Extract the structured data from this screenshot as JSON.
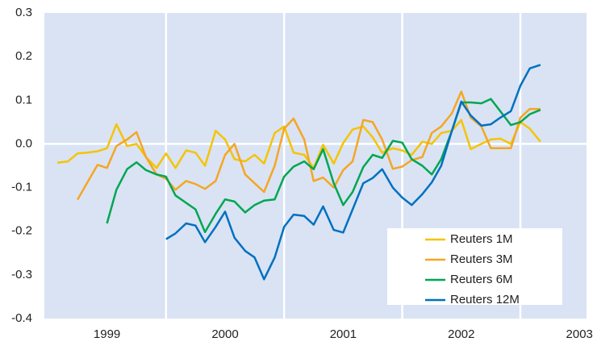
{
  "chart_data": {
    "type": "line",
    "x": [
      1998.58,
      1998.67,
      1998.75,
      1998.83,
      1998.92,
      1999.0,
      1999.08,
      1999.17,
      1999.25,
      1999.33,
      1999.42,
      1999.5,
      1999.58,
      1999.67,
      1999.75,
      1999.83,
      1999.92,
      2000.0,
      2000.08,
      2000.17,
      2000.25,
      2000.33,
      2000.42,
      2000.5,
      2000.58,
      2000.67,
      2000.75,
      2000.83,
      2000.92,
      2001.0,
      2001.08,
      2001.17,
      2001.25,
      2001.33,
      2001.42,
      2001.5,
      2001.58,
      2001.67,
      2001.75,
      2001.83,
      2001.92,
      2002.0,
      2002.08,
      2002.17,
      2002.25,
      2002.33,
      2002.42,
      2002.5,
      2002.58,
      2002.67
    ],
    "series": [
      {
        "name": "Reuters 1M",
        "color": "#f5c400",
        "values": [
          -0.043,
          -0.04,
          -0.022,
          -0.02,
          -0.017,
          -0.01,
          0.045,
          -0.005,
          0.0,
          -0.03,
          -0.055,
          -0.022,
          -0.055,
          -0.015,
          -0.02,
          -0.05,
          0.03,
          0.01,
          -0.035,
          -0.04,
          -0.025,
          -0.045,
          0.025,
          0.04,
          -0.02,
          -0.025,
          -0.055,
          -0.002,
          -0.045,
          0.002,
          0.033,
          0.04,
          0.015,
          -0.02,
          -0.01,
          -0.015,
          -0.025,
          0.005,
          0.0,
          0.025,
          0.03,
          0.055,
          -0.012,
          0.0,
          0.01,
          0.012,
          0.0,
          0.05,
          0.035,
          0.005
        ]
      },
      {
        "name": "Reuters 3M",
        "color": "#f5a623",
        "values": [
          null,
          null,
          -0.128,
          -0.09,
          -0.048,
          -0.055,
          -0.005,
          0.01,
          0.027,
          -0.03,
          -0.07,
          -0.08,
          -0.105,
          -0.085,
          -0.092,
          -0.103,
          -0.085,
          -0.025,
          0.0,
          -0.07,
          -0.09,
          -0.11,
          -0.05,
          0.035,
          0.058,
          0.01,
          -0.085,
          -0.077,
          -0.1,
          -0.06,
          -0.04,
          0.055,
          0.05,
          0.01,
          -0.057,
          -0.052,
          -0.037,
          -0.03,
          0.025,
          0.04,
          0.07,
          0.12,
          0.06,
          0.04,
          -0.01,
          -0.01,
          -0.01,
          0.06,
          0.08,
          0.08
        ]
      },
      {
        "name": "Reuters 6M",
        "color": "#00a651",
        "values": [
          null,
          null,
          null,
          null,
          null,
          -0.182,
          -0.105,
          -0.058,
          -0.042,
          -0.06,
          -0.07,
          -0.075,
          -0.118,
          -0.135,
          -0.15,
          -0.202,
          -0.16,
          -0.127,
          -0.132,
          -0.157,
          -0.14,
          -0.13,
          -0.127,
          -0.075,
          -0.052,
          -0.04,
          -0.058,
          -0.012,
          -0.09,
          -0.14,
          -0.11,
          -0.053,
          -0.025,
          -0.032,
          0.007,
          0.003,
          -0.035,
          -0.05,
          -0.07,
          -0.035,
          0.03,
          0.095,
          0.095,
          0.093,
          0.103,
          0.075,
          0.043,
          0.05,
          0.068,
          0.078
        ]
      },
      {
        "name": "Reuters 12M",
        "color": "#0070c0",
        "values": [
          null,
          null,
          null,
          null,
          null,
          null,
          null,
          null,
          null,
          null,
          null,
          -0.218,
          -0.205,
          -0.182,
          -0.187,
          -0.225,
          -0.19,
          -0.155,
          -0.215,
          -0.245,
          -0.26,
          -0.31,
          -0.26,
          -0.19,
          -0.162,
          -0.165,
          -0.185,
          -0.143,
          -0.197,
          -0.203,
          -0.15,
          -0.09,
          -0.078,
          -0.058,
          -0.1,
          -0.123,
          -0.14,
          -0.115,
          -0.088,
          -0.05,
          0.03,
          0.097,
          0.065,
          0.042,
          0.045,
          0.06,
          0.075,
          0.133,
          0.173,
          0.181
        ]
      }
    ],
    "xlim": [
      1998.47,
      2003.06
    ],
    "xticks": [
      1999,
      2000,
      2001,
      2002,
      2003
    ],
    "xgrid": [
      1999.5,
      2000.5,
      2001.5,
      2002.5
    ],
    "ylim": [
      -0.4,
      0.3
    ],
    "yticks": [
      -0.4,
      -0.3,
      -0.2,
      -0.1,
      {
        "value": 0,
        "label": "0.0"
      },
      0.1,
      0.2,
      0.3
    ],
    "ygrid": [
      {
        "value": 0,
        "label": "0.0"
      }
    ],
    "legend": "lower right",
    "background": "#d9e3f4"
  }
}
